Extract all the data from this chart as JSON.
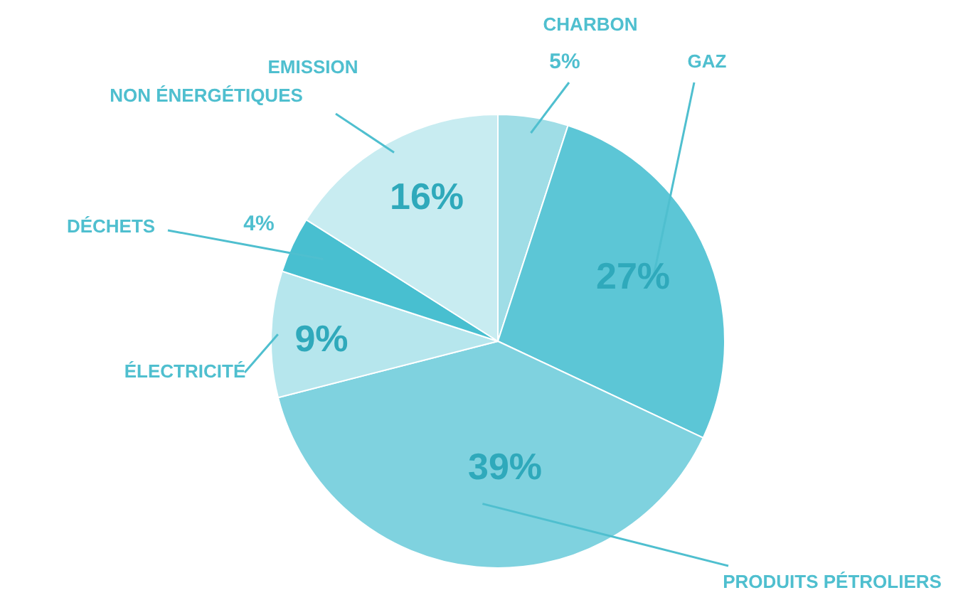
{
  "chart_data": {
    "type": "pie",
    "legend": false,
    "categories": [
      "CHARBON",
      "GAZ",
      "PRODUITS PÉTROLIERS",
      "ÉLECTRICITÉ",
      "DÉCHETS",
      "EMISSION NON ÉNERGÉTIQUES"
    ],
    "values": [
      5,
      27,
      39,
      9,
      4,
      16
    ],
    "colors": [
      "#9fdde6",
      "#5cc6d6",
      "#7fd2df",
      "#b6e6ed",
      "#48bfd0",
      "#c8ecf1"
    ],
    "value_labels": [
      "5%",
      "27%",
      "39%",
      "9%",
      "4%",
      "16%"
    ]
  }
}
